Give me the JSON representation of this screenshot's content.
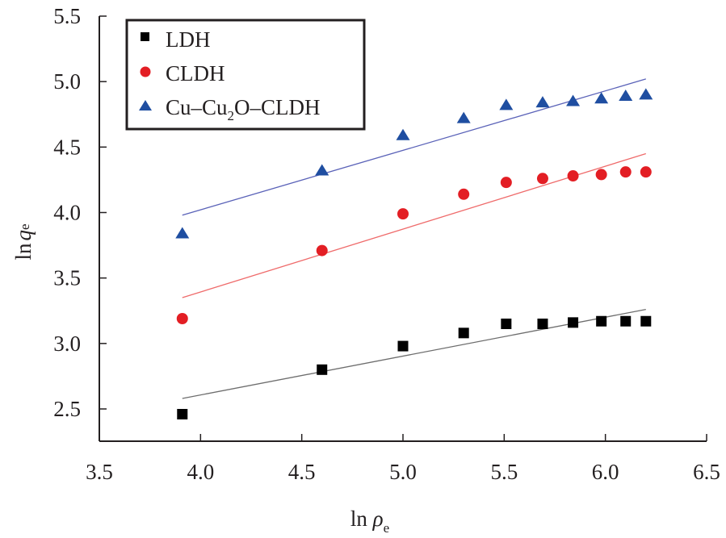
{
  "chart_data": {
    "type": "scatter",
    "title": "",
    "xlabel": "ln ρe",
    "xlabel_main": "ln ",
    "xlabel_var": "ρ",
    "xlabel_sub": "e",
    "ylabel": "ln qe",
    "ylabel_main": "ln",
    "ylabel_var": "q",
    "ylabel_sub": "e",
    "xlim": [
      3.5,
      6.5
    ],
    "ylim": [
      2.25,
      5.5
    ],
    "xticks": [
      3.5,
      4.0,
      4.5,
      5.0,
      5.5,
      6.0,
      6.5
    ],
    "xtick_labels": [
      "3.5",
      "4.0",
      "4.5",
      "5.0",
      "5.5",
      "6.0",
      "6.5"
    ],
    "yticks": [
      2.5,
      3.0,
      3.5,
      4.0,
      4.5,
      5.0,
      5.5
    ],
    "ytick_labels": [
      "2.5",
      "3.0",
      "3.5",
      "4.0",
      "4.5",
      "5.0",
      "5.5"
    ],
    "grid": false,
    "legend_position": "top-left",
    "x": [
      3.91,
      4.6,
      5.0,
      5.3,
      5.51,
      5.69,
      5.84,
      5.98,
      6.1,
      6.2
    ],
    "series": [
      {
        "name": "LDH",
        "legend_main": "LDH",
        "marker": "square",
        "color": "#000000",
        "line_color": "#6d6d6d",
        "values": [
          2.46,
          2.8,
          2.98,
          3.08,
          3.15,
          3.15,
          3.16,
          3.17,
          3.17,
          3.17
        ],
        "fit": {
          "x": [
            3.91,
            6.2
          ],
          "y": [
            2.58,
            3.26
          ]
        }
      },
      {
        "name": "CLDH",
        "legend_main": "CLDH",
        "marker": "circle",
        "color": "#e31e24",
        "line_color": "#ef6b6b",
        "values": [
          3.19,
          3.71,
          3.99,
          4.14,
          4.23,
          4.26,
          4.28,
          4.29,
          4.31,
          4.31
        ],
        "fit": {
          "x": [
            3.91,
            6.2
          ],
          "y": [
            3.35,
            4.45
          ]
        }
      },
      {
        "name": "Cu–Cu2O–CLDH",
        "legend_parts": [
          "Cu–Cu",
          "2",
          "O–CLDH"
        ],
        "marker": "triangle",
        "color": "#1f4ea1",
        "line_color": "#5a62b8",
        "values": [
          3.84,
          4.32,
          4.59,
          4.72,
          4.82,
          4.84,
          4.85,
          4.87,
          4.89,
          4.9
        ],
        "fit": {
          "x": [
            3.91,
            6.2
          ],
          "y": [
            3.98,
            5.02
          ]
        }
      }
    ]
  }
}
